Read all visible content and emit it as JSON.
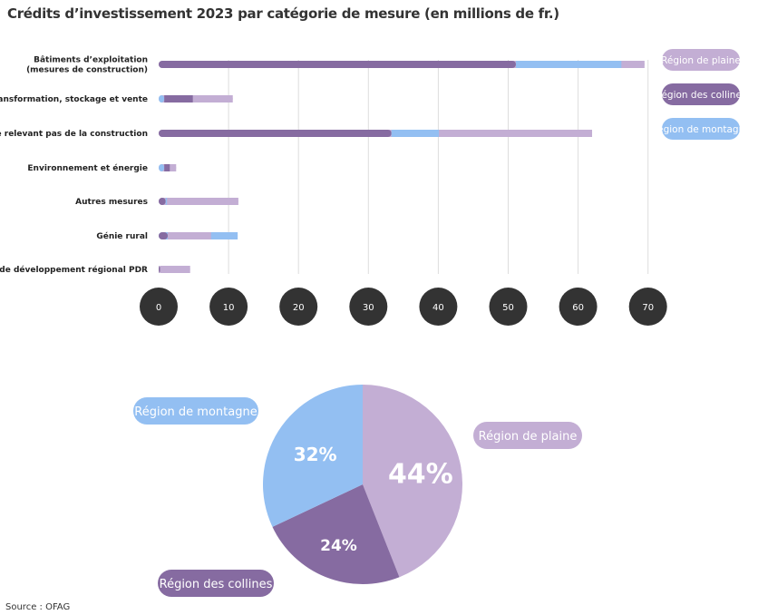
{
  "title": "Crédits d’investissement 2023 par catégorie de mesure (en millions de fr.)",
  "source": "Source : OFAG",
  "colors": {
    "Région de plaine": "#c3aed4",
    "Région des collines": "#866ba1",
    "Région de montagne": "#93bff2"
  },
  "chart_data": [
    {
      "type": "bar",
      "orientation": "horizontal",
      "stacked": true,
      "categories": [
        [
          "Bâtiments d’exploitation",
          "(mesures de construction)"
        ],
        [
          "Transformation, stockage et vente"
        ],
        [
          "Mesures ne relevant pas de la construction"
        ],
        [
          "Environnement et énergie"
        ],
        [
          "Autres mesures"
        ],
        [
          "Génie rural"
        ],
        [
          "Projets de développement régional PDR"
        ]
      ],
      "segments": [
        [
          {
            "series": "Région des collines",
            "value": 51.1
          },
          {
            "series": "Région de montagne",
            "value": 15.1
          },
          {
            "series": "Région de plaine",
            "value": 3.3
          }
        ],
        [
          {
            "series": "Région de montagne",
            "value": 0.8
          },
          {
            "series": "Région des collines",
            "value": 4.1
          },
          {
            "series": "Région de plaine",
            "value": 5.7
          }
        ],
        [
          {
            "series": "Région des collines",
            "value": 33.3
          },
          {
            "series": "Région de montagne",
            "value": 6.8
          },
          {
            "series": "Région de plaine",
            "value": 21.9
          }
        ],
        [
          {
            "series": "Région de montagne",
            "value": 0.8
          },
          {
            "series": "Région des collines",
            "value": 0.8
          },
          {
            "series": "Région de plaine",
            "value": 0.9
          }
        ],
        [
          {
            "series": "Région des collines",
            "value": 1.0
          },
          {
            "series": "Région de montagne",
            "value": 0.2
          },
          {
            "series": "Région de plaine",
            "value": 10.2
          }
        ],
        [
          {
            "series": "Région des collines",
            "value": 1.3
          },
          {
            "series": "Région de plaine",
            "value": 6.2
          },
          {
            "series": "Région de montagne",
            "value": 3.8
          }
        ],
        [
          {
            "series": "Région des collines",
            "value": 0.2
          },
          {
            "series": "Région de plaine",
            "value": 4.3
          }
        ]
      ],
      "xlim": [
        0,
        70
      ],
      "xticks": [
        "0",
        "10",
        "20",
        "30",
        "40",
        "50",
        "60",
        "70"
      ],
      "grid": true,
      "legend": {
        "placement": "right",
        "entries": [
          "Région de plaine",
          "Région des collines",
          "Région de montagne"
        ]
      }
    },
    {
      "type": "pie",
      "slices": [
        {
          "name": "Région de plaine",
          "value": 44,
          "label": "44%"
        },
        {
          "name": "Région des collines",
          "value": 24,
          "label": "24%"
        },
        {
          "name": "Région de montagne",
          "value": 32,
          "label": "32%"
        }
      ]
    }
  ]
}
